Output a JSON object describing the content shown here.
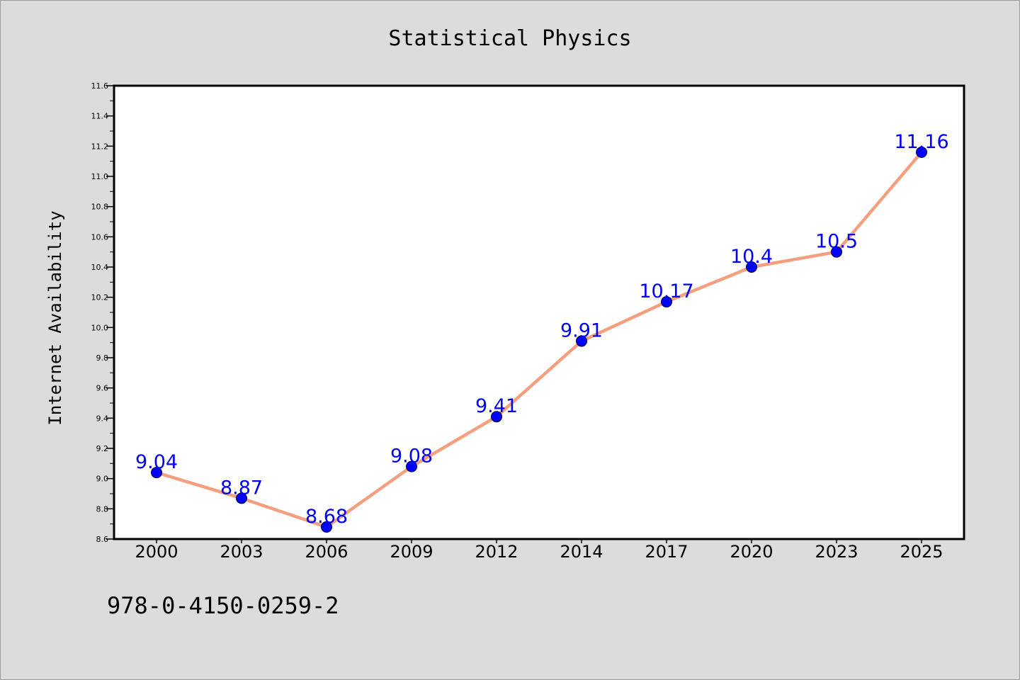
{
  "chart_data": {
    "type": "line",
    "title": "Statistical Physics",
    "xlabel": "",
    "ylabel": "Internet Availability",
    "categories": [
      "2000",
      "2003",
      "2006",
      "2009",
      "2012",
      "2014",
      "2017",
      "2020",
      "2023",
      "2025"
    ],
    "series": [
      {
        "values": [
          9.04,
          8.87,
          8.68,
          9.08,
          9.41,
          9.91,
          10.17,
          10.4,
          10.5,
          11.16
        ]
      }
    ],
    "data_labels": [
      "9.04",
      "8.87",
      "8.68",
      "9.08",
      "9.41",
      "9.91",
      "10.17",
      "10.4",
      "10.5",
      "11.16"
    ],
    "ylim": [
      8.6,
      11.6
    ],
    "yticks": [
      8.6,
      8.8,
      9.0,
      9.2,
      9.4,
      9.6,
      9.8,
      10.0,
      10.2,
      10.4,
      10.6,
      10.8,
      11.0,
      11.2,
      11.4,
      11.6
    ],
    "ytick_labels": [
      "8.6",
      "8.8",
      "9.0",
      "9.2",
      "9.4",
      "9.6",
      "9.8",
      "10.0",
      "10.2",
      "10.4",
      "10.6",
      "10.8",
      "11.0",
      "11.2",
      "11.4",
      "11.6"
    ],
    "grid": false,
    "colors": {
      "line": "#f4a07e",
      "marker": "#0000ff",
      "marker_edge": "#000033",
      "data_label": "#0000ff",
      "background": "#dcdcdc",
      "plot_background": "#ffffff"
    }
  },
  "footer": {
    "isbn": "978-0-4150-0259-2"
  }
}
